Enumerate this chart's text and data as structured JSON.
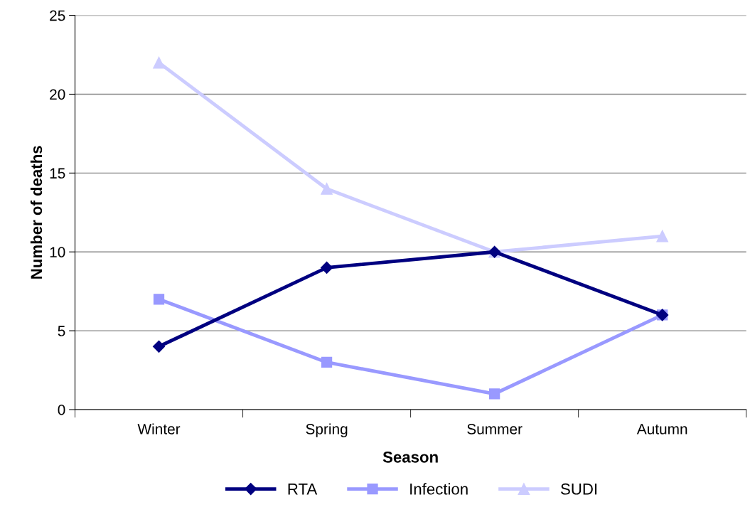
{
  "chart_data": {
    "type": "line",
    "xlabel": "Season",
    "ylabel": "Number of deaths",
    "categories": [
      "Winter",
      "Spring",
      "Summer",
      "Autumn"
    ],
    "series": [
      {
        "name": "RTA",
        "color": "#000080",
        "marker": "diamond",
        "values": [
          4,
          9,
          10,
          6
        ]
      },
      {
        "name": "Infection",
        "color": "#9999ff",
        "marker": "square",
        "values": [
          7,
          3,
          1,
          6
        ]
      },
      {
        "name": "SUDI",
        "color": "#ccccff",
        "marker": "triangle",
        "values": [
          22,
          14,
          10,
          11
        ]
      }
    ],
    "ylim": [
      0,
      25
    ],
    "yticks": [
      0,
      5,
      10,
      15,
      20,
      25
    ],
    "grid": "y",
    "legend": "bottom",
    "line_style": "solid"
  }
}
